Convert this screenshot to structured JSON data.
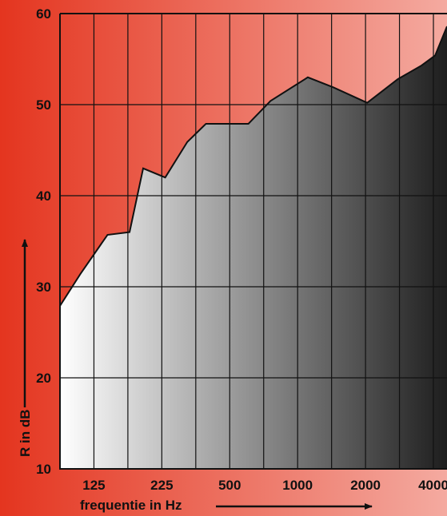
{
  "chart_data": {
    "type": "area",
    "xlabel": "frequentie in Hz",
    "ylabel": "R in dB",
    "ylim": [
      10,
      60
    ],
    "y_ticks": [
      10,
      20,
      30,
      40,
      50,
      60
    ],
    "x_tick_labels": [
      "125",
      "225",
      "500",
      "1000",
      "2000",
      "4000"
    ],
    "x_tick_positions": [
      1,
      3,
      5,
      7,
      9,
      11
    ],
    "xlim": [
      0,
      11.4
    ],
    "grid": true,
    "series": [
      {
        "x": [
          0,
          0.6,
          1.4,
          2.05,
          2.45,
          3.1,
          3.75,
          4.3,
          5.0,
          5.55,
          6.2,
          7.3,
          8.05,
          9.05,
          9.95,
          10.65,
          11.05,
          11.4
        ],
        "values": [
          27.9,
          31.4,
          35.7,
          36.0,
          43.0,
          42.0,
          45.9,
          47.9,
          47.9,
          47.9,
          50.4,
          53.0,
          51.9,
          50.2,
          52.8,
          54.3,
          55.4,
          58.6
        ]
      }
    ],
    "colors": {
      "background_left": "#e4351f",
      "background_right": "#f4aaa0",
      "area_light": "#ffffff",
      "area_dark": "#1e1e1e",
      "line": "#111111",
      "grid": "#111111"
    }
  }
}
